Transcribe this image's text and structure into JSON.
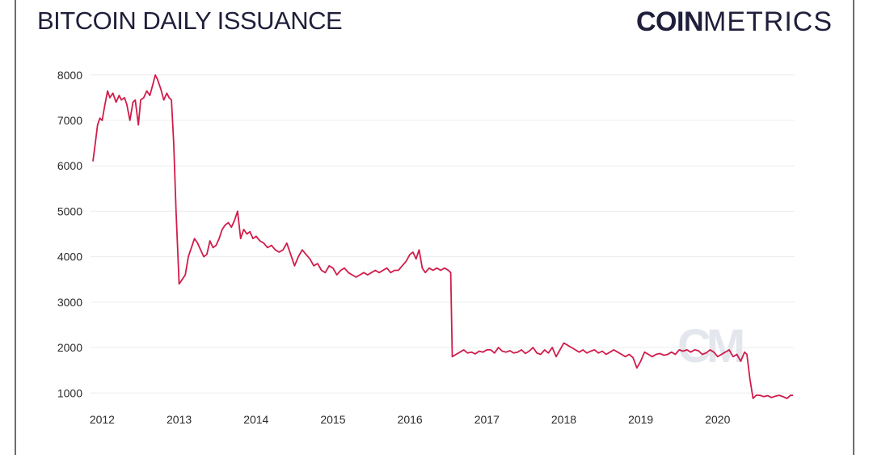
{
  "header": {
    "title": "BITCOIN DAILY ISSUANCE",
    "logo_bold": "COIN",
    "logo_light": "METRICS",
    "watermark": "CM"
  },
  "colors": {
    "line": "#d01c4b",
    "grid": "#ececec",
    "text": "#1f1f3b"
  },
  "chart_data": {
    "type": "line",
    "title": "BITCOIN DAILY ISSUANCE",
    "xlabel": "",
    "ylabel": "",
    "xlim": [
      2011.88,
      2021.0
    ],
    "ylim": [
      880,
      8050
    ],
    "x_ticks": [
      2012,
      2013,
      2014,
      2015,
      2016,
      2017,
      2018,
      2019,
      2020
    ],
    "y_ticks": [
      1000,
      2000,
      3000,
      4000,
      5000,
      6000,
      7000,
      8000
    ],
    "grid": "horizontal",
    "legend": "none",
    "series": [
      {
        "x": [
          2011.88,
          2011.91,
          2011.94,
          2011.97,
          2012.0,
          2012.03,
          2012.07,
          2012.1,
          2012.14,
          2012.18,
          2012.22,
          2012.25,
          2012.29,
          2012.32,
          2012.36,
          2012.4,
          2012.43,
          2012.47,
          2012.5,
          2012.54,
          2012.58,
          2012.62,
          2012.66,
          2012.69,
          2012.72,
          2012.76,
          2012.8,
          2012.84,
          2012.87,
          2012.9,
          2012.93,
          2012.96,
          2013.0,
          2013.04,
          2013.08,
          2013.12,
          2013.16,
          2013.2,
          2013.24,
          2013.28,
          2013.32,
          2013.36,
          2013.4,
          2013.44,
          2013.48,
          2013.52,
          2013.56,
          2013.6,
          2013.64,
          2013.68,
          2013.72,
          2013.76,
          2013.8,
          2013.84,
          2013.88,
          2013.92,
          2013.96,
          2014.0,
          2014.05,
          2014.1,
          2014.15,
          2014.2,
          2014.25,
          2014.3,
          2014.35,
          2014.4,
          2014.45,
          2014.5,
          2014.55,
          2014.6,
          2014.65,
          2014.7,
          2014.75,
          2014.8,
          2014.85,
          2014.9,
          2014.95,
          2015.0,
          2015.05,
          2015.1,
          2015.15,
          2015.2,
          2015.25,
          2015.3,
          2015.35,
          2015.4,
          2015.45,
          2015.5,
          2015.55,
          2015.6,
          2015.65,
          2015.7,
          2015.75,
          2015.8,
          2015.85,
          2015.9,
          2015.95,
          2016.0,
          2016.04,
          2016.08,
          2016.12,
          2016.16,
          2016.2,
          2016.25,
          2016.3,
          2016.35,
          2016.4,
          2016.45,
          2016.5,
          2016.53,
          2016.55,
          2016.6,
          2016.65,
          2016.7,
          2016.75,
          2016.8,
          2016.85,
          2016.9,
          2016.95,
          2017.0,
          2017.05,
          2017.1,
          2017.15,
          2017.2,
          2017.25,
          2017.3,
          2017.35,
          2017.4,
          2017.45,
          2017.5,
          2017.55,
          2017.6,
          2017.65,
          2017.7,
          2017.75,
          2017.8,
          2017.85,
          2017.9,
          2017.95,
          2018.0,
          2018.05,
          2018.1,
          2018.15,
          2018.2,
          2018.25,
          2018.3,
          2018.35,
          2018.4,
          2018.45,
          2018.5,
          2018.55,
          2018.6,
          2018.65,
          2018.7,
          2018.75,
          2018.8,
          2018.85,
          2018.9,
          2018.95,
          2019.0,
          2019.05,
          2019.1,
          2019.15,
          2019.2,
          2019.25,
          2019.3,
          2019.35,
          2019.4,
          2019.45,
          2019.5,
          2019.55,
          2019.6,
          2019.65,
          2019.7,
          2019.75,
          2019.8,
          2019.85,
          2019.9,
          2019.95,
          2020.0,
          2020.05,
          2020.1,
          2020.15,
          2020.2,
          2020.25,
          2020.3,
          2020.35,
          2020.38,
          2020.42,
          2020.46,
          2020.5,
          2020.55,
          2020.6,
          2020.65,
          2020.7,
          2020.75,
          2020.8,
          2020.85,
          2020.9,
          2020.95,
          2020.98
        ],
        "y": [
          6100,
          6500,
          6900,
          7050,
          7000,
          7300,
          7650,
          7500,
          7600,
          7400,
          7550,
          7450,
          7500,
          7350,
          7000,
          7400,
          7450,
          6900,
          7450,
          7500,
          7650,
          7550,
          7800,
          8000,
          7900,
          7700,
          7450,
          7600,
          7500,
          7450,
          6500,
          5000,
          3400,
          3500,
          3600,
          4000,
          4200,
          4400,
          4300,
          4150,
          4000,
          4050,
          4350,
          4200,
          4250,
          4400,
          4600,
          4700,
          4750,
          4650,
          4800,
          5000,
          4400,
          4600,
          4500,
          4550,
          4400,
          4450,
          4350,
          4300,
          4200,
          4250,
          4150,
          4100,
          4150,
          4300,
          4050,
          3800,
          4000,
          4150,
          4050,
          3950,
          3800,
          3850,
          3700,
          3650,
          3800,
          3750,
          3600,
          3700,
          3750,
          3650,
          3600,
          3550,
          3600,
          3650,
          3600,
          3650,
          3700,
          3650,
          3700,
          3750,
          3650,
          3700,
          3700,
          3800,
          3900,
          4050,
          4100,
          3950,
          4150,
          3750,
          3650,
          3750,
          3700,
          3750,
          3700,
          3750,
          3700,
          3650,
          1800,
          1850,
          1900,
          1950,
          1880,
          1900,
          1860,
          1920,
          1900,
          1950,
          1950,
          1880,
          2000,
          1920,
          1900,
          1930,
          1880,
          1900,
          1950,
          1870,
          1920,
          2000,
          1880,
          1850,
          1950,
          1880,
          2000,
          1800,
          1950,
          2100,
          2050,
          2000,
          1950,
          1900,
          1950,
          1880,
          1920,
          1950,
          1880,
          1920,
          1850,
          1900,
          1950,
          1900,
          1850,
          1800,
          1850,
          1780,
          1550,
          1700,
          1900,
          1850,
          1800,
          1850,
          1870,
          1830,
          1850,
          1900,
          1850,
          1950,
          1920,
          1950,
          1900,
          1950,
          1930,
          1850,
          1880,
          1950,
          1900,
          1800,
          1850,
          1900,
          1950,
          1800,
          1850,
          1700,
          1900,
          1850,
          1300,
          880,
          950,
          950,
          920,
          940,
          900,
          930,
          950,
          920,
          880,
          950,
          950
        ]
      }
    ]
  }
}
